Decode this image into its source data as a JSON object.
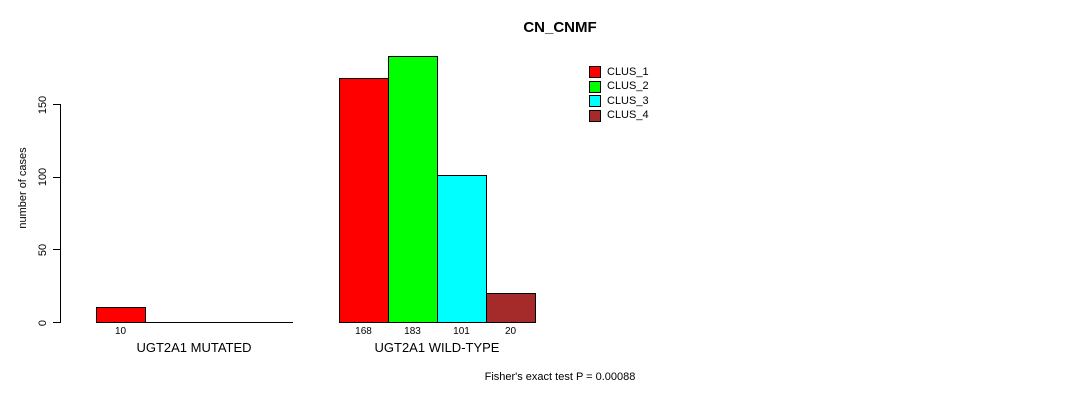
{
  "title": "CN_CNMF",
  "y_axis": {
    "label": "number of cases",
    "tick_labels": [
      "0",
      "50",
      "100",
      "150"
    ]
  },
  "footer_annotation": "Fisher's exact test P = 0.00088",
  "chart_data": {
    "type": "bar",
    "title": "CN_CNMF",
    "xlabel": "",
    "ylabel": "number of cases",
    "ylim": [
      0,
      190
    ],
    "y_ticks": [
      0,
      50,
      100,
      150
    ],
    "grid": false,
    "legend_position": "top-right",
    "categories": [
      "UGT2A1 MUTATED",
      "UGT2A1 WILD-TYPE"
    ],
    "series": [
      {
        "name": "CLUS_1",
        "color": "#FF0000",
        "values": [
          10,
          168
        ]
      },
      {
        "name": "CLUS_2",
        "color": "#00FF00",
        "values": [
          0,
          183
        ]
      },
      {
        "name": "CLUS_3",
        "color": "#00FFFF",
        "values": [
          0,
          101
        ]
      },
      {
        "name": "CLUS_4",
        "color": "#A52A2A",
        "values": [
          0,
          20
        ]
      }
    ],
    "shown_bar_value_labels": [
      [
        "10"
      ],
      [
        "168",
        "183",
        "101",
        "20"
      ]
    ],
    "annotation": "Fisher's exact test P = 0.00088",
    "bar_border_color": "#000000",
    "background_color": "#FFFFFF"
  }
}
